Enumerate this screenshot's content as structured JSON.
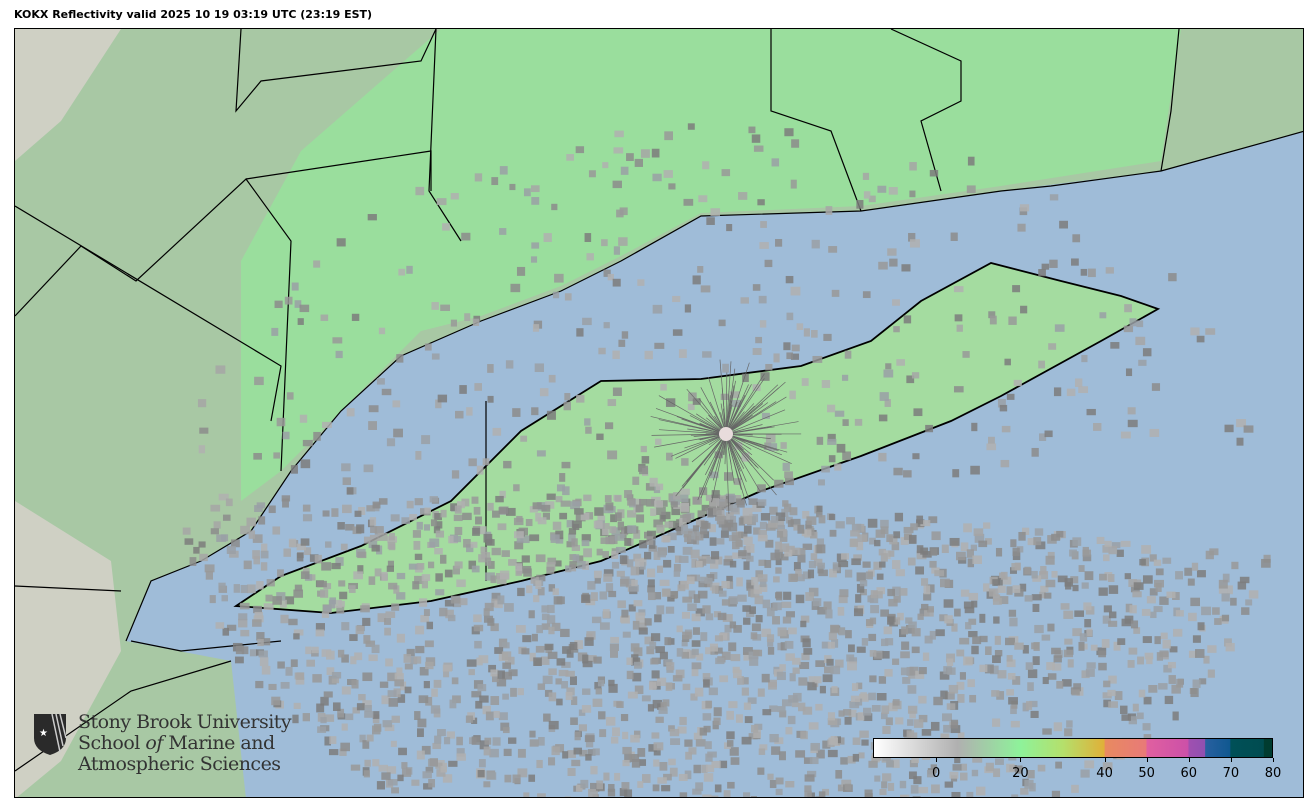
{
  "title": "KOKX Reflectivity valid 2025 10 19 03:19 UTC (23:19 EST)",
  "colors": {
    "ocean": "#9fbcd8",
    "land_green": "#98e29c",
    "land_gray": "#b4b4b4",
    "terrain": "#d8d2cc",
    "echo_gray": "#8c8c8c",
    "border": "#000000"
  },
  "logo": {
    "line1": "Stony Brook University",
    "line2a": "School ",
    "line2b": "of",
    "line2c": " Marine and",
    "line3": "Atmospheric Sciences",
    "icon": "sbu-shield-icon"
  },
  "colorbar": {
    "label_unit": "",
    "range": [
      -15,
      80
    ],
    "ticks": [
      {
        "value": 0,
        "label": "0"
      },
      {
        "value": 20,
        "label": "20"
      },
      {
        "value": 40,
        "label": "40"
      },
      {
        "value": 50,
        "label": "50"
      },
      {
        "value": 60,
        "label": "60"
      },
      {
        "value": 70,
        "label": "70"
      },
      {
        "value": 80,
        "label": "80"
      }
    ],
    "stops": [
      {
        "value": -15,
        "color": "#ffffff"
      },
      {
        "value": 5,
        "color": "#b0b0b0"
      },
      {
        "value": 20,
        "color": "#8ef29a"
      },
      {
        "value": 30,
        "color": "#b4e06c"
      },
      {
        "value": 40,
        "color": "#e0b038"
      },
      {
        "value": 40.1,
        "color": "#e88a60"
      },
      {
        "value": 50,
        "color": "#e87a78"
      },
      {
        "value": 50.1,
        "color": "#e060a0"
      },
      {
        "value": 60,
        "color": "#cc50a8"
      },
      {
        "value": 60.1,
        "color": "#a050b0"
      },
      {
        "value": 64,
        "color": "#9050b0"
      },
      {
        "value": 64.1,
        "color": "#2860a0"
      },
      {
        "value": 70,
        "color": "#105890"
      },
      {
        "value": 70.1,
        "color": "#005058"
      },
      {
        "value": 78,
        "color": "#004c50"
      },
      {
        "value": 78.1,
        "color": "#003c30"
      },
      {
        "value": 80,
        "color": "#003c30"
      }
    ]
  }
}
